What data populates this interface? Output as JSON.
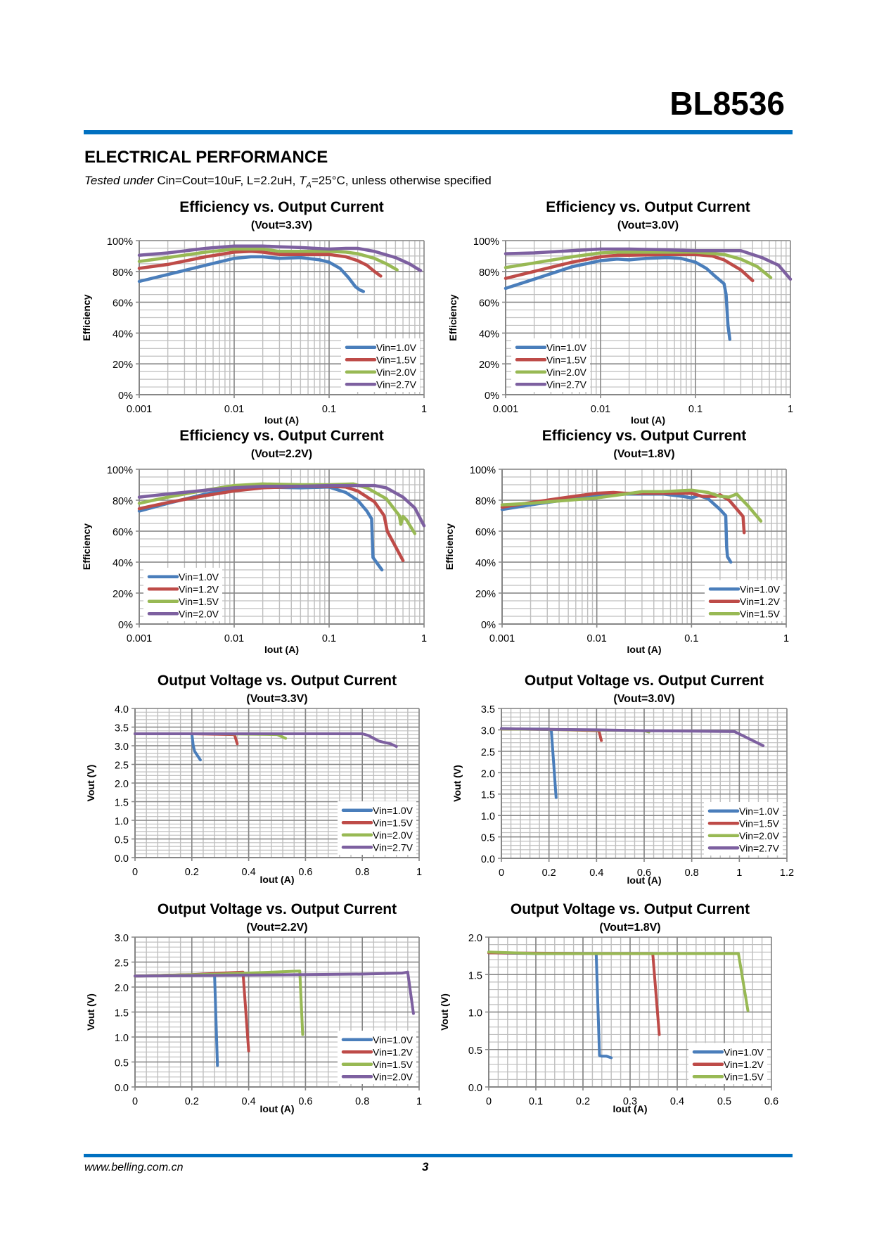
{
  "header": {
    "part_number": "BL8536"
  },
  "section": {
    "title": "ELECTRICAL PERFORMANCE",
    "conditions_italic": "Tested under",
    "conditions_text_1": " Cin=Cout=10uF, L=2.2uH, ",
    "conditions_ta": "T",
    "conditions_ta_sub": "A",
    "conditions_text_2": "=25°C, unless otherwise specified"
  },
  "footer": {
    "url": "www.belling.com.cn",
    "page": "3"
  },
  "colors": {
    "accent_rule": "#0070c0",
    "series_blue": "#4a7ebb",
    "series_red": "#be4b48",
    "series_green": "#98b954",
    "series_purple": "#7d60a0",
    "grid_major": "#868686",
    "grid_minor": "#bfbfbf"
  },
  "chart_data": [
    {
      "type": "line",
      "title": "Efficiency vs. Output Current",
      "subtitle": "(Vout=3.3V)",
      "xlabel": "Iout (A)",
      "ylabel": "Efficiency",
      "xscale": "log",
      "xlim": [
        0.001,
        1
      ],
      "ylim": [
        0,
        100
      ],
      "xticks": [
        "0.001",
        "0.01",
        "0.1",
        "1"
      ],
      "yticks": [
        "0%",
        "20%",
        "40%",
        "60%",
        "80%",
        "100%"
      ],
      "grid": true,
      "legend": "bottom-right",
      "series": [
        {
          "name": "Vin=1.0V",
          "color": "#4a7ebb",
          "x": [
            0.001,
            0.002,
            0.005,
            0.01,
            0.015,
            0.02,
            0.03,
            0.05,
            0.08,
            0.1,
            0.13,
            0.16,
            0.19,
            0.21,
            0.23
          ],
          "y": [
            73.5,
            78,
            84,
            88.5,
            89.5,
            89.5,
            88.5,
            89,
            87.5,
            86,
            82,
            76,
            70,
            68,
            67
          ]
        },
        {
          "name": "Vin=1.5V",
          "color": "#be4b48",
          "x": [
            0.001,
            0.002,
            0.005,
            0.01,
            0.015,
            0.02,
            0.03,
            0.05,
            0.1,
            0.15,
            0.2,
            0.25,
            0.3,
            0.35
          ],
          "y": [
            82,
            84.5,
            89.5,
            92.5,
            93,
            92.5,
            91,
            91,
            91,
            89.5,
            87,
            84,
            80,
            77
          ]
        },
        {
          "name": "Vin=2.0V",
          "color": "#98b954",
          "x": [
            0.001,
            0.002,
            0.005,
            0.01,
            0.02,
            0.03,
            0.05,
            0.1,
            0.15,
            0.2,
            0.3,
            0.4,
            0.52
          ],
          "y": [
            86.5,
            89,
            92.5,
            94.5,
            94.5,
            93,
            93,
            93,
            92.5,
            91.5,
            88.5,
            85,
            81
          ]
        },
        {
          "name": "Vin=2.7V",
          "color": "#7d60a0",
          "x": [
            0.001,
            0.002,
            0.005,
            0.01,
            0.02,
            0.03,
            0.05,
            0.1,
            0.15,
            0.2,
            0.3,
            0.5,
            0.7,
            0.92
          ],
          "y": [
            90.5,
            92,
            95,
            96.5,
            96.5,
            96,
            95.5,
            94.5,
            95,
            95,
            93,
            89,
            85,
            80.5
          ]
        }
      ]
    },
    {
      "type": "line",
      "title": "Efficiency vs. Output Current",
      "subtitle": "(Vout=3.0V)",
      "xlabel": "Iout (A)",
      "ylabel": "Efficiency",
      "xscale": "log",
      "xlim": [
        0.001,
        1
      ],
      "ylim": [
        0,
        100
      ],
      "xticks": [
        "0.001",
        "0.01",
        "0.1",
        "1"
      ],
      "yticks": [
        "0%",
        "20%",
        "40%",
        "60%",
        "80%",
        "100%"
      ],
      "grid": true,
      "legend": "bottom-left",
      "series": [
        {
          "name": "Vin=1.0V",
          "color": "#4a7ebb",
          "x": [
            0.001,
            0.002,
            0.005,
            0.01,
            0.015,
            0.02,
            0.03,
            0.05,
            0.07,
            0.1,
            0.13,
            0.16,
            0.2,
            0.21,
            0.22,
            0.23
          ],
          "y": [
            69,
            75,
            83,
            87,
            88,
            87.5,
            88.5,
            89,
            88.5,
            86,
            82,
            77,
            72,
            65,
            45,
            36
          ]
        },
        {
          "name": "Vin=1.5V",
          "color": "#be4b48",
          "x": [
            0.001,
            0.002,
            0.005,
            0.01,
            0.015,
            0.02,
            0.05,
            0.1,
            0.15,
            0.2,
            0.3,
            0.4
          ],
          "y": [
            75.5,
            80,
            86,
            89.5,
            90.5,
            90.5,
            91,
            91,
            90,
            87.5,
            81,
            74
          ]
        },
        {
          "name": "Vin=2.0V",
          "color": "#98b954",
          "x": [
            0.001,
            0.002,
            0.005,
            0.01,
            0.015,
            0.02,
            0.05,
            0.1,
            0.2,
            0.3,
            0.45,
            0.62
          ],
          "y": [
            82.5,
            85.5,
            89.5,
            92,
            92.5,
            92.5,
            92.5,
            92.5,
            91,
            88,
            83,
            76
          ]
        },
        {
          "name": "Vin=2.7V",
          "color": "#7d60a0",
          "x": [
            0.001,
            0.002,
            0.005,
            0.01,
            0.02,
            0.05,
            0.1,
            0.2,
            0.3,
            0.5,
            0.75,
            1.0
          ],
          "y": [
            91.5,
            92,
            93.5,
            94.5,
            94.5,
            94,
            93.5,
            93.5,
            93.5,
            89,
            84,
            75
          ]
        }
      ]
    },
    {
      "type": "line",
      "title": "Efficiency vs. Output Current",
      "subtitle": "(Vout=2.2V)",
      "xlabel": "Iout (A)",
      "ylabel": "Efficiency",
      "xscale": "log",
      "xlim": [
        0.001,
        1
      ],
      "ylim": [
        0,
        100
      ],
      "xticks": [
        "0.001",
        "0.01",
        "0.1",
        "1"
      ],
      "yticks": [
        "0%",
        "20%",
        "40%",
        "60%",
        "80%",
        "100%"
      ],
      "grid": true,
      "legend": "bottom-left",
      "series": [
        {
          "name": "Vin=1.0V",
          "color": "#4a7ebb",
          "x": [
            0.001,
            0.002,
            0.005,
            0.01,
            0.02,
            0.05,
            0.1,
            0.15,
            0.2,
            0.25,
            0.28,
            0.29,
            0.36
          ],
          "y": [
            73,
            78,
            84,
            87.5,
            88.5,
            88,
            88.5,
            85,
            80,
            73,
            68,
            43,
            35
          ]
        },
        {
          "name": "Vin=1.2V",
          "color": "#be4b48",
          "x": [
            0.001,
            0.002,
            0.005,
            0.01,
            0.02,
            0.05,
            0.1,
            0.15,
            0.2,
            0.3,
            0.38,
            0.41,
            0.6
          ],
          "y": [
            74.5,
            78.5,
            83,
            86,
            88,
            89,
            89,
            88.5,
            86,
            79,
            70,
            60,
            41
          ]
        },
        {
          "name": "Vin=1.5V",
          "color": "#98b954",
          "x": [
            0.001,
            0.002,
            0.005,
            0.01,
            0.02,
            0.05,
            0.1,
            0.18,
            0.25,
            0.4,
            0.55,
            0.57,
            0.6,
            0.65,
            0.8
          ],
          "y": [
            78,
            82,
            86.5,
            89.5,
            90.5,
            90,
            90,
            90.5,
            88,
            81,
            70,
            64.5,
            69.5,
            67.5,
            58.5
          ]
        },
        {
          "name": "Vin=2.0V",
          "color": "#7d60a0",
          "x": [
            0.001,
            0.002,
            0.005,
            0.01,
            0.02,
            0.05,
            0.1,
            0.2,
            0.3,
            0.4,
            0.6,
            0.8,
            1.0
          ],
          "y": [
            82,
            84,
            86.5,
            88,
            89,
            89,
            89.5,
            89.5,
            89.5,
            88,
            82,
            75,
            63.5
          ]
        }
      ]
    },
    {
      "type": "line",
      "title": "Efficiency vs. Output Current",
      "subtitle": "(Vout=1.8V)",
      "xlabel": "Iout (A)",
      "ylabel": "Efficiency",
      "xscale": "log",
      "xlim": [
        0.001,
        1
      ],
      "ylim": [
        0,
        100
      ],
      "xticks": [
        "0.001",
        "0.01",
        "0.1",
        "1"
      ],
      "yticks": [
        "0%",
        "20%",
        "40%",
        "60%",
        "80%",
        "100%"
      ],
      "grid": true,
      "legend": "bottom-right",
      "series": [
        {
          "name": "Vin=1.0V",
          "color": "#4a7ebb",
          "x": [
            0.001,
            0.002,
            0.005,
            0.01,
            0.02,
            0.05,
            0.08,
            0.1,
            0.12,
            0.15,
            0.2,
            0.23,
            0.235,
            0.24,
            0.26
          ],
          "y": [
            74,
            77,
            80.5,
            83,
            84,
            84,
            82.5,
            81.5,
            83,
            81,
            74,
            70,
            50,
            43.5,
            40
          ]
        },
        {
          "name": "Vin=1.2V",
          "color": "#be4b48",
          "x": [
            0.001,
            0.002,
            0.005,
            0.01,
            0.015,
            0.02,
            0.05,
            0.1,
            0.13,
            0.18,
            0.2,
            0.25,
            0.35,
            0.36
          ],
          "y": [
            75.5,
            78.5,
            82,
            84.5,
            85,
            84.5,
            84.5,
            84.5,
            82.5,
            82.5,
            83.5,
            80,
            69.5,
            59
          ]
        },
        {
          "name": "Vin=1.5V",
          "color": "#98b954",
          "x": [
            0.001,
            0.002,
            0.005,
            0.01,
            0.02,
            0.03,
            0.05,
            0.1,
            0.15,
            0.2,
            0.25,
            0.3,
            0.4,
            0.54
          ],
          "y": [
            77,
            78,
            80,
            81.5,
            84,
            85.5,
            85.5,
            86.5,
            85,
            82.5,
            82,
            84,
            76,
            66.5
          ]
        }
      ]
    },
    {
      "type": "line",
      "title": "Output Voltage vs. Output Current",
      "subtitle": "(Vout=3.3V)",
      "xlabel": "Iout (A)",
      "ylabel": "Vout (V)",
      "xscale": "linear",
      "xlim": [
        0,
        1
      ],
      "ylim": [
        0,
        4
      ],
      "xticks": [
        "0",
        "0.2",
        "0.4",
        "0.6",
        "0.8",
        "1"
      ],
      "yticks": [
        "0.0",
        "0.5",
        "1.0",
        "1.5",
        "2.0",
        "2.5",
        "3.0",
        "3.5",
        "4.0"
      ],
      "grid": true,
      "legend": "bottom-right",
      "series": [
        {
          "name": "Vin=1.0V",
          "color": "#4a7ebb",
          "x": [
            0,
            0.1,
            0.2,
            0.205,
            0.21,
            0.23
          ],
          "y": [
            3.32,
            3.32,
            3.32,
            3.0,
            2.85,
            2.62
          ]
        },
        {
          "name": "Vin=1.5V",
          "color": "#be4b48",
          "x": [
            0,
            0.2,
            0.35,
            0.36
          ],
          "y": [
            3.32,
            3.32,
            3.3,
            3.05
          ]
        },
        {
          "name": "Vin=2.0V",
          "color": "#98b954",
          "x": [
            0,
            0.3,
            0.5,
            0.53
          ],
          "y": [
            3.32,
            3.32,
            3.3,
            3.2
          ]
        },
        {
          "name": "Vin=2.7V",
          "color": "#7d60a0",
          "x": [
            0,
            0.2,
            0.4,
            0.6,
            0.8,
            0.82,
            0.86,
            0.9,
            0.92
          ],
          "y": [
            3.32,
            3.32,
            3.32,
            3.32,
            3.32,
            3.28,
            3.12,
            3.05,
            2.98
          ]
        }
      ]
    },
    {
      "type": "line",
      "title": "Output Voltage vs. Output Current",
      "subtitle": "(Vout=3.0V)",
      "xlabel": "Iout (A)",
      "ylabel": "Vout (V)",
      "xscale": "linear",
      "xlim": [
        0,
        1.2
      ],
      "ylim": [
        0,
        3.5
      ],
      "xticks": [
        "0",
        "0.2",
        "0.4",
        "0.6",
        "0.8",
        "1",
        "1.2"
      ],
      "yticks": [
        "0.0",
        "0.5",
        "1.0",
        "1.5",
        "2.0",
        "2.5",
        "3.0",
        "3.5"
      ],
      "grid": true,
      "legend": "bottom-right",
      "series": [
        {
          "name": "Vin=1.0V",
          "color": "#4a7ebb",
          "x": [
            0,
            0.1,
            0.2,
            0.21,
            0.23
          ],
          "y": [
            3.03,
            3.02,
            3.02,
            2.98,
            1.42
          ]
        },
        {
          "name": "Vin=1.5V",
          "color": "#be4b48",
          "x": [
            0,
            0.2,
            0.41,
            0.42
          ],
          "y": [
            3.02,
            3.01,
            2.98,
            2.75
          ]
        },
        {
          "name": "Vin=2.0V",
          "color": "#98b954",
          "x": [
            0,
            0.3,
            0.6,
            0.62
          ],
          "y": [
            3.02,
            3.0,
            2.98,
            2.95
          ]
        },
        {
          "name": "Vin=2.7V",
          "color": "#7d60a0",
          "x": [
            0,
            0.2,
            0.4,
            0.6,
            0.8,
            0.98,
            1.1
          ],
          "y": [
            3.03,
            3.01,
            3.0,
            2.98,
            2.97,
            2.96,
            2.63
          ]
        }
      ]
    },
    {
      "type": "line",
      "title": "Output Voltage vs. Output Current",
      "subtitle": "(Vout=2.2V)",
      "xlabel": "Iout (A)",
      "ylabel": "Vout (V)",
      "xscale": "linear",
      "xlim": [
        0,
        1
      ],
      "ylim": [
        0,
        3
      ],
      "xticks": [
        "0",
        "0.2",
        "0.4",
        "0.6",
        "0.8",
        "1"
      ],
      "yticks": [
        "0.0",
        "0.5",
        "1.0",
        "1.5",
        "2.0",
        "2.5",
        "3.0"
      ],
      "grid": true,
      "legend": "bottom-right",
      "series": [
        {
          "name": "Vin=1.0V",
          "color": "#4a7ebb",
          "x": [
            0,
            0.14,
            0.28,
            0.29
          ],
          "y": [
            2.22,
            2.24,
            2.25,
            0.43
          ]
        },
        {
          "name": "Vin=1.2V",
          "color": "#be4b48",
          "x": [
            0,
            0.2,
            0.38,
            0.4
          ],
          "y": [
            2.22,
            2.25,
            2.3,
            0.72
          ]
        },
        {
          "name": "Vin=1.5V",
          "color": "#98b954",
          "x": [
            0,
            0.3,
            0.58,
            0.59
          ],
          "y": [
            2.22,
            2.26,
            2.32,
            1.05
          ]
        },
        {
          "name": "Vin=2.0V",
          "color": "#7d60a0",
          "x": [
            0,
            0.2,
            0.4,
            0.6,
            0.8,
            0.94,
            0.96,
            0.98
          ],
          "y": [
            2.22,
            2.23,
            2.24,
            2.25,
            2.26,
            2.28,
            2.3,
            1.47
          ]
        }
      ]
    },
    {
      "type": "line",
      "title": "Output Voltage vs. Output Current",
      "subtitle": "(Vout=1.8V)",
      "xlabel": "Iout (A)",
      "ylabel": "Vout (V)",
      "xscale": "linear",
      "xlim": [
        0,
        0.6
      ],
      "ylim": [
        0,
        2
      ],
      "xticks": [
        "0",
        "0.1",
        "0.2",
        "0.3",
        "0.4",
        "0.5",
        "0.6"
      ],
      "yticks": [
        "0.0",
        "0.5",
        "1.0",
        "1.5",
        "2.0"
      ],
      "grid": true,
      "legend": "bottom-right",
      "series": [
        {
          "name": "Vin=1.0V",
          "color": "#4a7ebb",
          "x": [
            0,
            0.1,
            0.228,
            0.235,
            0.24,
            0.25,
            0.26
          ],
          "y": [
            1.79,
            1.78,
            1.78,
            0.42,
            0.41,
            0.41,
            0.39
          ]
        },
        {
          "name": "Vin=1.2V",
          "color": "#be4b48",
          "x": [
            0,
            0.2,
            0.348,
            0.362
          ],
          "y": [
            1.79,
            1.78,
            1.78,
            0.7
          ]
        },
        {
          "name": "Vin=1.5V",
          "color": "#98b954",
          "x": [
            0,
            0.1,
            0.3,
            0.5,
            0.53,
            0.55
          ],
          "y": [
            1.8,
            1.78,
            1.78,
            1.78,
            1.78,
            1.02
          ]
        }
      ]
    }
  ]
}
